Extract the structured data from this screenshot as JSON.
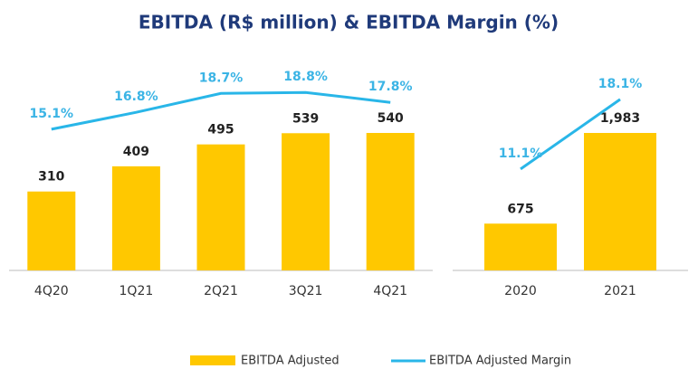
{
  "title": "EBITDA (R$ million) & EBITDA Margin (%)",
  "chart_data": [
    {
      "type": "bar",
      "categories": [
        "4Q20",
        "1Q21",
        "2Q21",
        "3Q21",
        "4Q21"
      ],
      "series": [
        {
          "name": "EBITDA Adjusted",
          "color": "#ffc800",
          "values": [
            310,
            409,
            495,
            539,
            540
          ]
        },
        {
          "name": "EBITDA Adjusted Margin",
          "color": "#29b6e8",
          "type": "line",
          "values": [
            15.1,
            16.8,
            18.7,
            18.8,
            17.8
          ],
          "value_labels": [
            "15.1%",
            "16.8%",
            "18.7%",
            "18.8%",
            "17.8%"
          ]
        }
      ]
    },
    {
      "type": "bar",
      "categories": [
        "2020",
        "2021"
      ],
      "series": [
        {
          "name": "EBITDA Adjusted",
          "color": "#ffc800",
          "values": [
            675,
            1983
          ],
          "value_labels": [
            "675",
            "1,983"
          ]
        },
        {
          "name": "EBITDA Adjusted Margin",
          "color": "#29b6e8",
          "type": "line",
          "values": [
            11.1,
            18.1
          ],
          "value_labels": [
            "11.1%",
            "18.1%"
          ]
        }
      ]
    }
  ]
}
